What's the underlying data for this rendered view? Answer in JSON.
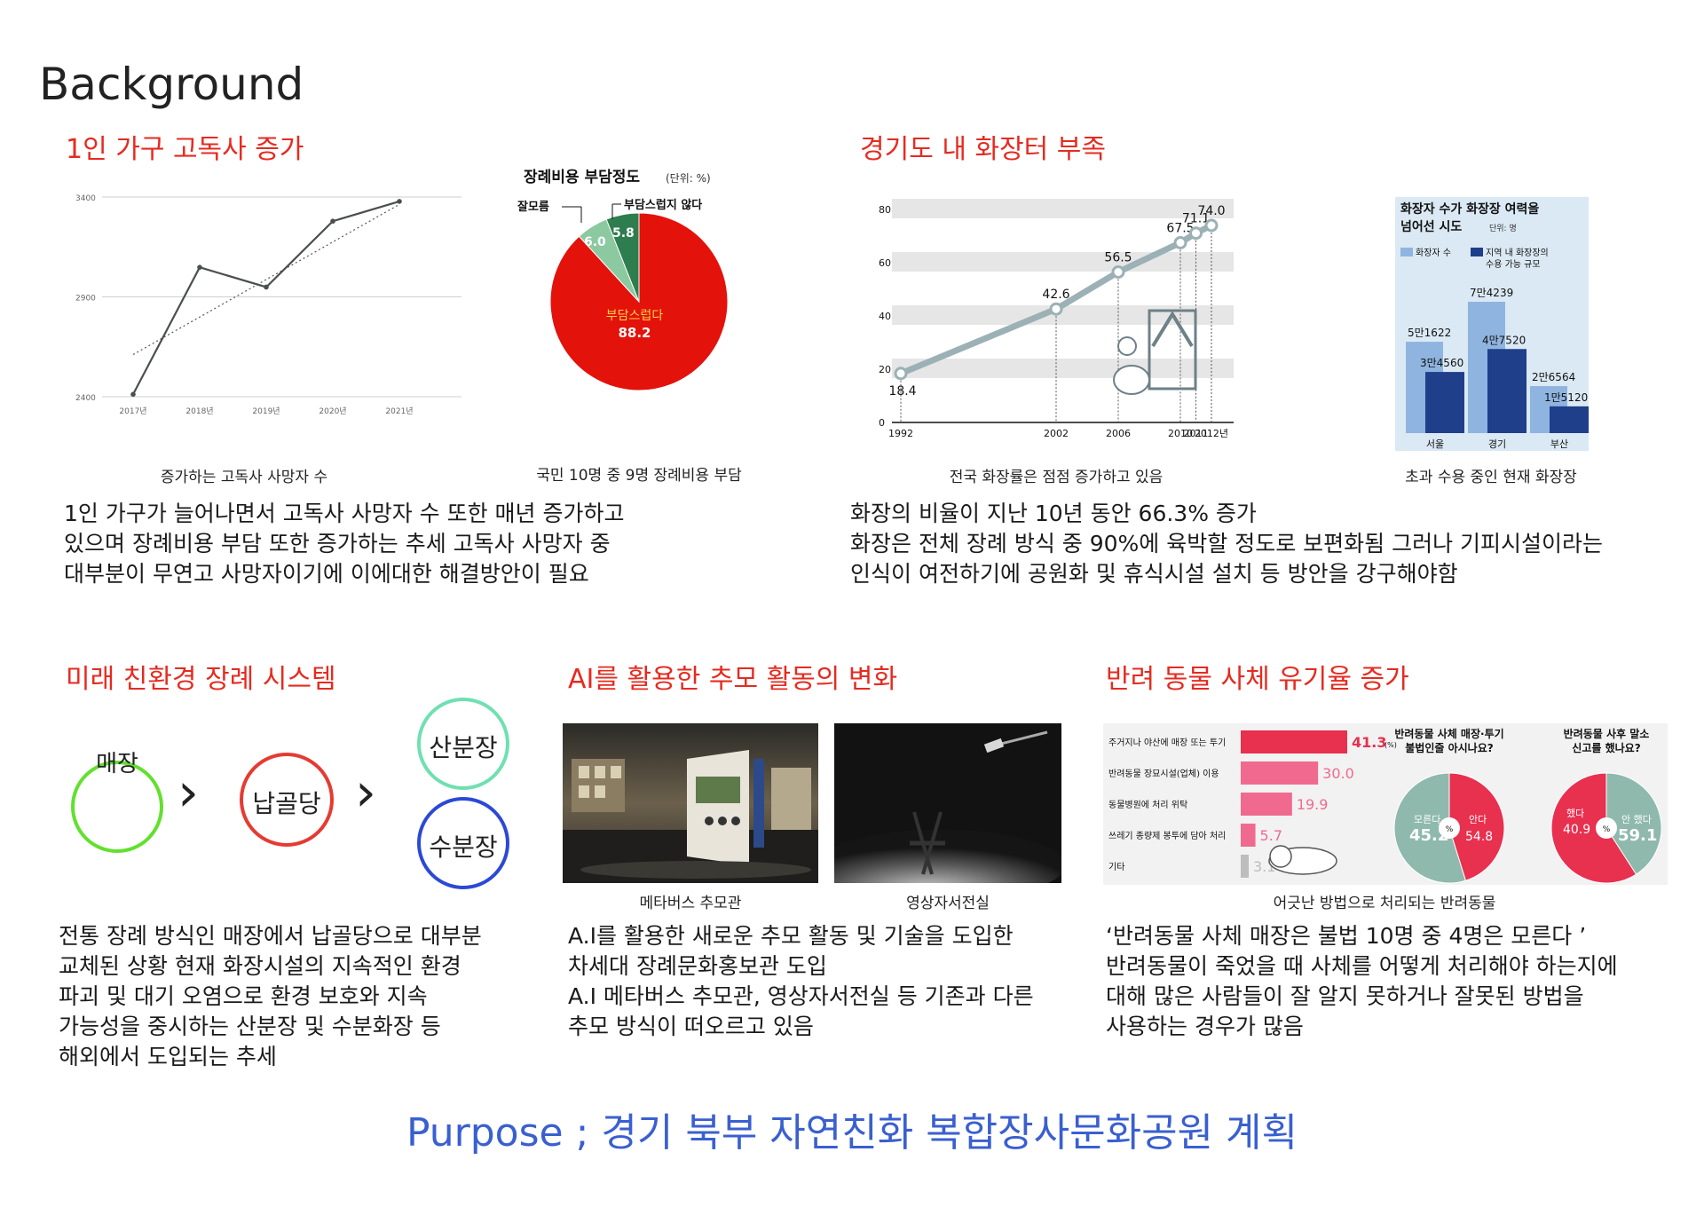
{
  "page_title": "Background",
  "sections": {
    "s1": {
      "title": "1인 가구 고독사 증가",
      "caption_line": "증가하는 고독사 사망자 수",
      "caption_pie": "국민 10명 중 9명 장례비용 부담",
      "body": "1인 가구가 늘어나면서 고독사 사망자 수 또한 매년 증가하고\n있으며 장례비용 부담 또한 증가하는 추세 고독사 사망자 중\n대부분이 무연고 사망자이기에 이에대한 해결방안이 필요"
    },
    "s2": {
      "title": "경기도 내 화장터 부족",
      "caption_line": "전국 화장률은 점점 증가하고 있음",
      "caption_bar": "초과 수용 중인 현재 화장장",
      "body": "화장의 비율이 지난 10년 동안 66.3% 증가\n화장은 전체 장례 방식 중 90%에 육박할 정도로 보편화됨 그러나 기피시설이라는\n인식이 여전하기에 공원화 및 휴식시설 설치 등 방안을 강구해야함"
    },
    "s3": {
      "title": "미래 친환경 장례 시스템",
      "flow": {
        "burial": "매장",
        "columbarium": "납골당",
        "scatter": "산분장",
        "water": "수분장",
        "arrow": "›"
      },
      "body": "전통 장례 방식인 매장에서 납골당으로 대부분\n교체된 상황 현재 화장시설의 지속적인 환경\n파괴 및 대기 오염으로 환경 보호와 지속\n가능성을 중시하는 산분장 및 수분화장 등\n해외에서 도입되는 추세"
    },
    "s4": {
      "title": "AI를 활용한 추모 활동의 변화",
      "caption_left": "메타버스 추모관",
      "caption_right": "영상자서전실",
      "body": "A.I를 활용한 새로운 추모 활동 및 기술을 도입한\n차세대 장례문화홍보관 도입\nA.I 메타버스 추모관, 영상자서전실 등 기존과 다른\n추모 방식이 떠오르고 있음"
    },
    "s5": {
      "title": "반려 동물 사체 유기율 증가",
      "caption": "어긋난 방법으로 처리되는 반려동물",
      "body": "‘반려동물 사체 매장은 불법 10명 중 4명은 모른다 ’\n반려동물이 죽었을 때 사체를 어떻게 처리해야 하는지에\n대해 많은 사람들이 잘 알지 못하거나 잘못된 방법을\n사용하는 경우가 많음"
    }
  },
  "purpose": "Purpose ; 경기 북부 자연친화 복합장사문화공원 계획",
  "colors": {
    "accent_red": "#e52b20",
    "purpose_blue": "#3a5fd0",
    "pie_red": "#e3120b",
    "pie_green": "#2e7d4f",
    "pie_lightgreen": "#8cc9a0",
    "bar_light": "#8fb4e0",
    "bar_dark": "#1f3f8a",
    "bar_pink": "#e8406a",
    "donut_grey": "#8fb9ad"
  },
  "chart_data": [
    {
      "type": "line",
      "x": [
        "2017년",
        "2018년",
        "2019년",
        "2020년",
        "2021년"
      ],
      "y_ticks": [
        "3400",
        "2900",
        "2400"
      ],
      "ylim": [
        2400,
        3400
      ],
      "series": [
        {
          "values": [
            2412,
            3048,
            2949,
            3279,
            3378
          ]
        }
      ],
      "trendline": [
        2611,
        2799,
        2987,
        3175,
        3363
      ]
    },
    {
      "type": "pie",
      "title": "장례비용 부담정도",
      "unit": "(단위: %)",
      "slices": [
        {
          "label": "부담스럽다",
          "value": 88.2,
          "color": "#e3120b"
        },
        {
          "label": "잘모름",
          "value": 6.0,
          "color": "#2e7d4f"
        },
        {
          "label": "부담스럽지 않다",
          "value": 5.8,
          "color": "#8cc9a0"
        }
      ]
    },
    {
      "type": "line",
      "x": [
        "1992",
        "2002",
        "2006",
        "2010",
        "2011",
        "2012년"
      ],
      "y_ticks": [
        "0",
        "20",
        "40",
        "60",
        "80"
      ],
      "ylim": [
        0,
        80
      ],
      "values": [
        18.4,
        42.6,
        56.5,
        67.5,
        71.1,
        74.0
      ],
      "value_labels": [
        "18.4",
        "42.6",
        "56.5",
        "67.5",
        "71.1",
        "74.0"
      ]
    },
    {
      "type": "bar",
      "title": "화장자 수가 화장장 여력을\n넘어선 시도",
      "unit": "단위: 명",
      "legend": [
        "화장자 수",
        "지역 내 화장장의\n수용 가능 규모"
      ],
      "categories": [
        "서울",
        "경기",
        "부산"
      ],
      "series": [
        {
          "name": "화장자 수",
          "values": [
            51622,
            74239,
            26564
          ],
          "labels": [
            "5만1622",
            "7만4239",
            "2만6564"
          ]
        },
        {
          "name": "지역 내 화장장의 수용 가능 규모",
          "values": [
            34560,
            47520,
            15120
          ],
          "labels": [
            "3만4560",
            "4만7520",
            "1만5120"
          ]
        }
      ]
    },
    {
      "type": "bar",
      "categories": [
        "주거지나 야산에 매장 또는 투기",
        "반려동물 장묘시설(업체) 이용",
        "동물병원에 처리 위탁",
        "쓰레기 종량제 봉투에 담아 처리",
        "기타"
      ],
      "values": [
        41.3,
        30.0,
        19.9,
        5.7,
        3.1
      ],
      "value_labels": [
        "41.3",
        "30.0",
        "19.9",
        "5.7",
        "3.1"
      ],
      "unit": "(%)"
    },
    {
      "type": "pie",
      "title": "반려동물 사체 매장·투기\n불법인줄 아시나요?",
      "center": "%",
      "slices": [
        {
          "label": "모른다",
          "value": 45.2,
          "color": "#e8304f"
        },
        {
          "label": "안다",
          "value": 54.8,
          "color": "#8fb9ad"
        }
      ]
    },
    {
      "type": "pie",
      "title": "반려동물 사후 말소\n신고를 했나요?",
      "center": "%",
      "slices": [
        {
          "label": "했다",
          "value": 40.9,
          "color": "#8fb9ad"
        },
        {
          "label": "안 했다",
          "value": 59.1,
          "color": "#e8304f"
        }
      ]
    }
  ]
}
